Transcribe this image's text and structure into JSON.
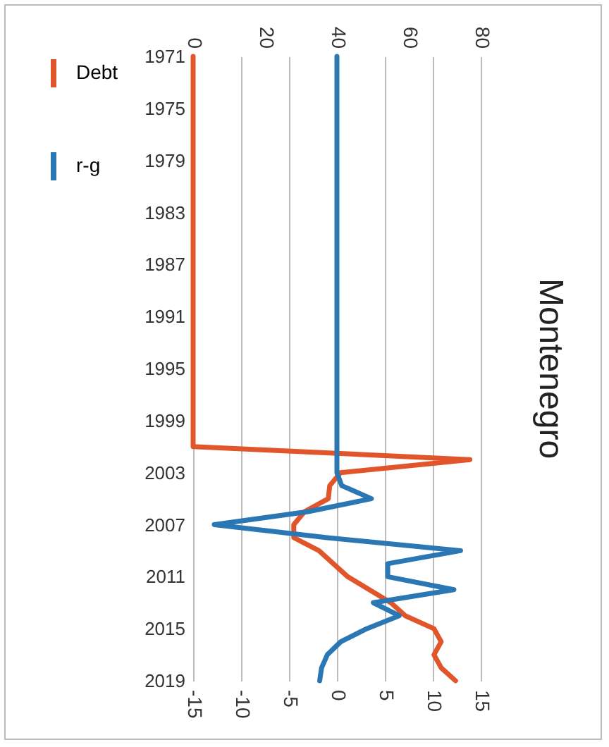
{
  "chart_data": {
    "type": "line",
    "title": "Montenegro",
    "orientation": "horizontal",
    "x": [
      1971,
      1972,
      1973,
      1974,
      1975,
      1976,
      1977,
      1978,
      1979,
      1980,
      1981,
      1982,
      1983,
      1984,
      1985,
      1986,
      1987,
      1988,
      1989,
      1990,
      1991,
      1992,
      1993,
      1994,
      1995,
      1996,
      1997,
      1998,
      1999,
      2000,
      2001,
      2002,
      2003,
      2004,
      2005,
      2006,
      2007,
      2008,
      2009,
      2010,
      2011,
      2012,
      2013,
      2014,
      2015,
      2016,
      2017,
      2018,
      2019
    ],
    "series": [
      {
        "name": "Debt",
        "color": "#e0562a",
        "axis": "x2",
        "values": [
          0,
          0,
          0,
          0,
          0,
          0,
          0,
          0,
          0,
          0,
          0,
          0,
          0,
          0,
          0,
          0,
          0,
          0,
          0,
          0,
          0,
          0,
          0,
          0,
          0,
          0,
          0,
          0,
          0,
          0,
          0,
          77,
          41,
          38,
          37.6,
          31,
          28,
          28,
          35,
          39,
          43,
          49,
          55,
          59,
          67,
          69,
          67,
          69,
          73
        ]
      },
      {
        "name": "r-g",
        "color": "#2a77b4",
        "values": [
          0,
          0,
          0,
          0,
          0,
          0,
          0,
          0,
          0,
          0,
          0,
          0,
          0,
          0,
          0,
          0,
          0,
          0,
          0,
          0,
          0,
          0,
          0,
          0,
          0,
          0,
          0,
          0,
          0,
          0,
          0,
          0,
          0,
          0.5,
          3.6,
          -3,
          -12.8,
          -1,
          12.9,
          5.3,
          5.3,
          12.2,
          3.8,
          6.5,
          3.1,
          0.4,
          -1,
          -1.6,
          -1.8
        ]
      }
    ],
    "ylim": [
      2019,
      1971
    ],
    "yticks": [
      1971,
      1975,
      1979,
      1983,
      1987,
      1991,
      1995,
      1999,
      2003,
      2007,
      2011,
      2015,
      2019
    ],
    "x2lim": [
      0,
      80
    ],
    "x2ticks": [
      0,
      20,
      40,
      60,
      80
    ],
    "xlim": [
      -15,
      15
    ],
    "xticks": [
      -15,
      -10,
      -5,
      0,
      5,
      10,
      15
    ],
    "grid": "x",
    "legend": "left",
    "line_style": "solid"
  }
}
